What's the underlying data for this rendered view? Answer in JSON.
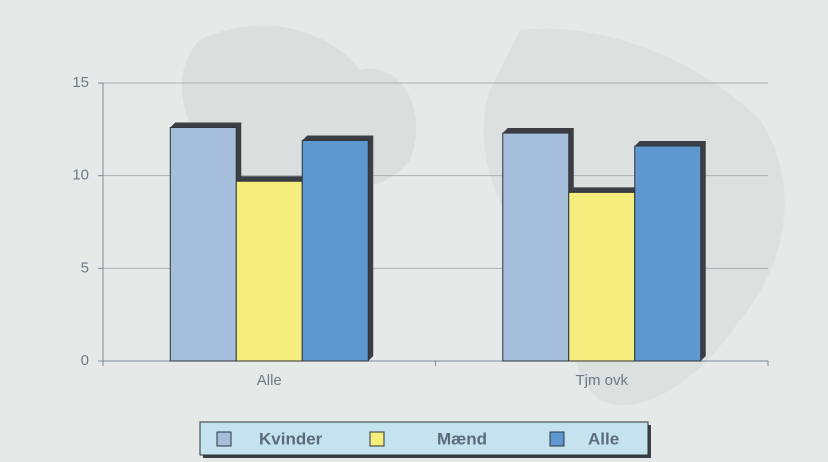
{
  "chart_data": {
    "type": "bar",
    "categories": [
      "Alle",
      "Tjm ovk"
    ],
    "series": [
      {
        "name": "Kvinder",
        "color": "#a4bedb",
        "values": [
          12.6,
          12.3
        ]
      },
      {
        "name": "Mænd",
        "color": "#f6ee7c",
        "values": [
          9.7,
          9.1
        ]
      },
      {
        "name": "Alle",
        "color": "#5d98d0",
        "values": [
          11.9,
          11.6
        ]
      }
    ],
    "ylim": [
      0,
      15
    ],
    "yticks": [
      0,
      5,
      10,
      15
    ],
    "grid": true,
    "legend": "bottom"
  }
}
